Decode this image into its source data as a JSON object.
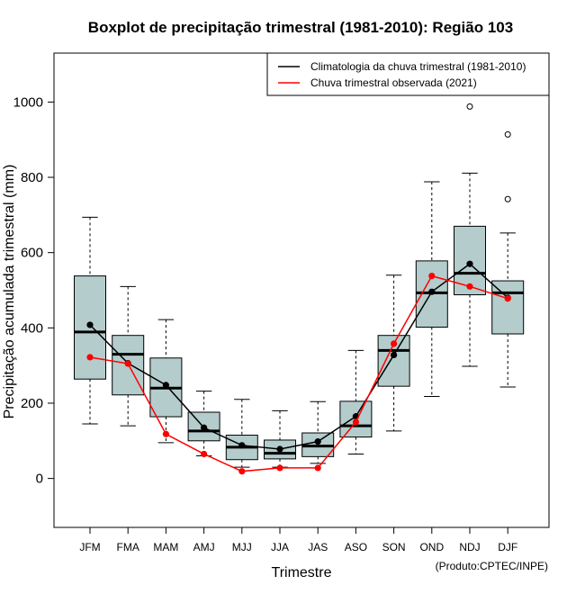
{
  "chart_data": {
    "type": "boxplot",
    "title": "Boxplot de precipitação trimestral (1981-2010): Região 103",
    "xlabel": "Trimestre",
    "ylabel": "Precipitação acumulada trimestral (mm)",
    "ylim": [
      -130,
      1130
    ],
    "yticks": [
      "0",
      "200",
      "400",
      "600",
      "800",
      "1000"
    ],
    "ytick_values": [
      0,
      200,
      400,
      600,
      800,
      1000
    ],
    "categories": [
      "JFM",
      "FMA",
      "MAM",
      "AMJ",
      "MJJ",
      "JJA",
      "JAS",
      "ASO",
      "SON",
      "OND",
      "NDJ",
      "DJF"
    ],
    "boxes": [
      {
        "min": 145,
        "q1": 264,
        "median": 389,
        "q3": 538,
        "max": 694,
        "outliers": []
      },
      {
        "min": 140,
        "q1": 222,
        "median": 330,
        "q3": 380,
        "max": 510,
        "outliers": []
      },
      {
        "min": 95,
        "q1": 164,
        "median": 240,
        "q3": 320,
        "max": 422,
        "outliers": []
      },
      {
        "min": 60,
        "q1": 100,
        "median": 126,
        "q3": 176,
        "max": 232,
        "outliers": []
      },
      {
        "min": 30,
        "q1": 50,
        "median": 83,
        "q3": 115,
        "max": 210,
        "outliers": []
      },
      {
        "min": 30,
        "q1": 52,
        "median": 67,
        "q3": 102,
        "max": 180,
        "outliers": []
      },
      {
        "min": 40,
        "q1": 58,
        "median": 86,
        "q3": 121,
        "max": 204,
        "outliers": []
      },
      {
        "min": 65,
        "q1": 110,
        "median": 140,
        "q3": 205,
        "max": 340,
        "outliers": []
      },
      {
        "min": 126,
        "q1": 245,
        "median": 340,
        "q3": 380,
        "max": 540,
        "outliers": []
      },
      {
        "min": 218,
        "q1": 402,
        "median": 493,
        "q3": 578,
        "max": 788,
        "outliers": []
      },
      {
        "min": 298,
        "q1": 488,
        "median": 545,
        "q3": 670,
        "max": 811,
        "outliers": [
          988
        ]
      },
      {
        "min": 243,
        "q1": 384,
        "median": 493,
        "q3": 525,
        "max": 652,
        "outliers": [
          742,
          914
        ]
      }
    ],
    "series": [
      {
        "name": "Climatologia da chuva trimestral (1981-2010)",
        "color": "#000000",
        "values": [
          408,
          306,
          248,
          135,
          88,
          78,
          98,
          165,
          328,
          496,
          570,
          480
        ]
      },
      {
        "name": "Chuva trimestral observada (2021)",
        "color": "#ff0000",
        "values": [
          322,
          305,
          118,
          65,
          19,
          28,
          28,
          150,
          358,
          538,
          510,
          478
        ]
      }
    ],
    "legend_position": "top-right",
    "box_fill": "#b4cccc"
  },
  "credit": "(Produto:CPTEC/INPE)"
}
